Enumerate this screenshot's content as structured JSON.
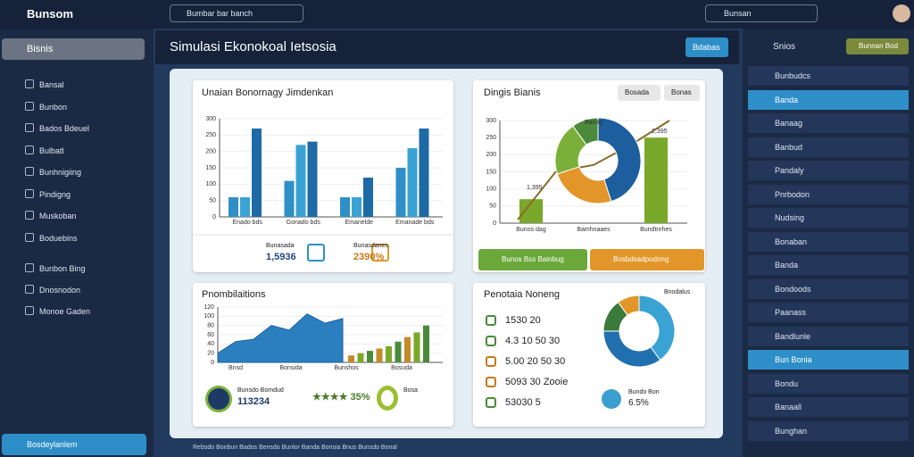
{
  "topbar": {
    "logo": "Bunsom",
    "search": "Bumbar bar banch",
    "search_right": "Bunsan"
  },
  "left_nav": {
    "header": "Bisnis",
    "items": [
      "Bansal",
      "Bunbon",
      "Bados Bdeuel",
      "Bulbatl",
      "Bunhnigiing",
      "Pindigng",
      "Muskoban",
      "Boduebins"
    ],
    "sub_items": [
      "Bunbon Bing",
      "Dnosnodon",
      "Monoe Gaden"
    ],
    "footer": "Bosdeylanlem"
  },
  "header": {
    "title": "Simulasi Ekonokoal Ietsosia",
    "button": "Bdabas"
  },
  "panel_a": {
    "title": "Unaian Bonornagy Jimdenkan",
    "chart": {
      "type": "bar",
      "categories": [
        "Enado bds",
        "Gonado bds",
        "Emanelde",
        "Emanade bds"
      ],
      "ylim": [
        0,
        300
      ],
      "yticks": [
        0,
        50,
        100,
        150,
        200,
        250,
        300
      ],
      "series": [
        {
          "color": "#2f8fc6",
          "values": [
            60,
            110,
            60,
            150
          ]
        },
        {
          "color": "#3aa3d4",
          "values": [
            60,
            220,
            60,
            210
          ]
        },
        {
          "color": "#1d6aa6",
          "values": [
            270,
            230,
            120,
            270
          ]
        }
      ]
    },
    "stats": [
      {
        "label": "Bunasada",
        "value": "1,5936"
      },
      {
        "label": "Bunasdanes",
        "value": "2390%"
      }
    ]
  },
  "panel_b": {
    "title": "Dingis Bianis",
    "buttons": [
      "Bosada",
      "Bonas"
    ],
    "chart": {
      "type": "combo",
      "categories": [
        "Bunos dag",
        "Bamhnaaes",
        "Bundtnrhes"
      ],
      "ylim": [
        0,
        300
      ],
      "yticks": [
        0,
        50,
        100,
        150,
        200,
        250,
        300
      ],
      "bar_color": "#7aa82a",
      "bar_values": [
        70,
        0,
        250
      ],
      "line_color": "#8a6a2a",
      "line_values": [
        10,
        150,
        170,
        230,
        300
      ],
      "donut": {
        "colors": [
          "#1d5e9e",
          "#e2962a",
          "#7ab03a",
          "#4a8a3a"
        ],
        "values": [
          45,
          25,
          20,
          10
        ]
      },
      "annotations": [
        "Banag",
        "2,395",
        "1,395"
      ]
    },
    "actions": [
      "Bunos Bss Bainbug",
      "Bosbdsadpodong"
    ]
  },
  "panel_c": {
    "title": "Pnombilaitions",
    "chart": {
      "type": "area",
      "ylim": [
        0,
        120
      ],
      "yticks": [
        0,
        20,
        40,
        60,
        80,
        100,
        120
      ],
      "categories": [
        "Bnsd",
        "Bonsida",
        "Bunshos",
        "Bosuda"
      ],
      "area_color": "#2c7fbf",
      "area_values": [
        20,
        45,
        50,
        80,
        70,
        105,
        85,
        95
      ],
      "bar_colors": [
        "#c48a2a",
        "#7aa82a",
        "#4a8a3a"
      ],
      "bar_values": [
        15,
        20,
        25,
        30,
        35,
        45,
        55,
        65,
        80
      ]
    },
    "stats": {
      "label": "Bunsdo Bomdud",
      "value": "113234",
      "rating": "★★★★ 35%",
      "ring_label": "Bosa"
    }
  },
  "panel_d": {
    "title": "Penotaia Noneng",
    "badge": "Bnodalus",
    "items": [
      "1530 20",
      "4.3 10 50 30",
      "5.00 20 50 30",
      "5093 30 Zooie",
      "53030 5"
    ],
    "donut": {
      "colors": [
        "#3aa3d4",
        "#2070b0",
        "#3a7a3a",
        "#e2962a"
      ],
      "values": [
        40,
        35,
        15,
        10
      ]
    },
    "stat_label": "Bundo Bon",
    "stat_value": "6.5%"
  },
  "right_nav": {
    "header": "Snios",
    "badge": "Bunnan Bod",
    "items": [
      "Bunbudcs",
      "Banda",
      "Banaag",
      "Banbud",
      "Pandaly",
      "Pnrbodon",
      "Nudsing",
      "Bonaban",
      "Banda",
      "Bondoods",
      "Paanass",
      "Bandlunle",
      "Bun Bonia",
      "Bondu",
      "Banaall",
      "Bunghan"
    ],
    "active": [
      1,
      12
    ]
  },
  "footer": "Rebsdo Bonbun  Bados Bensdo  Bunlor Banda  Bonsia Bnus  Bunsdo Bonal"
}
